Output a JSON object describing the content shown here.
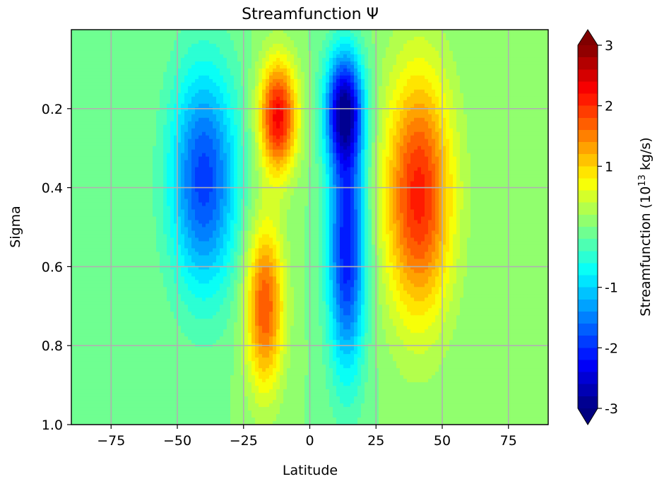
{
  "chart_data": {
    "type": "heatmap",
    "title": "Streamfunction Ψ",
    "xlabel": "Latitude",
    "ylabel": "Sigma",
    "xlim": [
      -90,
      90
    ],
    "ylim": [
      0.0,
      1.0
    ],
    "y_inverted": true,
    "grid": true,
    "x_ticks": [
      -75,
      -50,
      -25,
      0,
      25,
      50,
      75
    ],
    "x_tick_labels": [
      "−75",
      "−50",
      "−25",
      "0",
      "25",
      "50",
      "75"
    ],
    "y_ticks": [
      0.2,
      0.4,
      0.6,
      0.8,
      1.0
    ],
    "y_tick_labels": [
      "0.2",
      "0.4",
      "0.6",
      "0.8",
      "1.0"
    ],
    "colorbar": {
      "label_main": "Streamfunction (10",
      "label_exp": "13",
      "label_tail": " kg/s)",
      "range": [
        -3,
        3
      ],
      "extend": "both",
      "colormap": "jet",
      "ticks": [
        3,
        2,
        1,
        -1,
        -2,
        -3
      ],
      "tick_labels": [
        "3",
        "2",
        "1",
        "-1",
        "-2",
        "-3"
      ]
    },
    "features": [
      {
        "lat": -40,
        "sigma": 0.38,
        "value": -1.9,
        "lat_width": 9,
        "sigma_width": 0.2
      },
      {
        "lat": -12,
        "sigma": 0.22,
        "value": 2.3,
        "lat_width": 5,
        "sigma_width": 0.1
      },
      {
        "lat": -17,
        "sigma": 0.7,
        "value": 1.8,
        "lat_width": 5,
        "sigma_width": 0.15
      },
      {
        "lat": 13,
        "sigma": 0.2,
        "value": -2.5,
        "lat_width": 5,
        "sigma_width": 0.1
      },
      {
        "lat": 14,
        "sigma": 0.55,
        "value": -2.2,
        "lat_width": 5,
        "sigma_width": 0.22
      },
      {
        "lat": 41,
        "sigma": 0.42,
        "value": 2.1,
        "lat_width": 9,
        "sigma_width": 0.22
      }
    ]
  }
}
